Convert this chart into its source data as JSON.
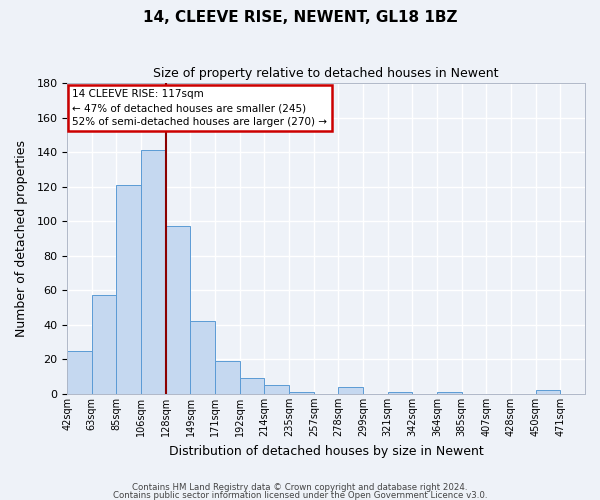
{
  "title": "14, CLEEVE RISE, NEWENT, GL18 1BZ",
  "subtitle": "Size of property relative to detached houses in Newent",
  "xlabel": "Distribution of detached houses by size in Newent",
  "ylabel": "Number of detached properties",
  "bar_labels": [
    "42sqm",
    "63sqm",
    "85sqm",
    "106sqm",
    "128sqm",
    "149sqm",
    "171sqm",
    "192sqm",
    "214sqm",
    "235sqm",
    "257sqm",
    "278sqm",
    "299sqm",
    "321sqm",
    "342sqm",
    "364sqm",
    "385sqm",
    "407sqm",
    "428sqm",
    "450sqm",
    "471sqm"
  ],
  "bar_values": [
    25,
    57,
    121,
    141,
    97,
    42,
    19,
    9,
    5,
    1,
    0,
    4,
    0,
    1,
    0,
    1,
    0,
    0,
    0,
    2,
    0
  ],
  "bar_color": "#c5d8f0",
  "bar_edge_color": "#5b9bd5",
  "vline_x": 4,
  "vline_color": "#8b0000",
  "ylim": [
    0,
    180
  ],
  "yticks": [
    0,
    20,
    40,
    60,
    80,
    100,
    120,
    140,
    160,
    180
  ],
  "annotation_title": "14 CLEEVE RISE: 117sqm",
  "annotation_line1": "← 47% of detached houses are smaller (245)",
  "annotation_line2": "52% of semi-detached houses are larger (270) →",
  "annotation_box_color": "#ffffff",
  "annotation_box_edge_color": "#cc0000",
  "footer1": "Contains HM Land Registry data © Crown copyright and database right 2024.",
  "footer2": "Contains public sector information licensed under the Open Government Licence v3.0.",
  "background_color": "#eef2f8",
  "grid_color": "#ffffff"
}
